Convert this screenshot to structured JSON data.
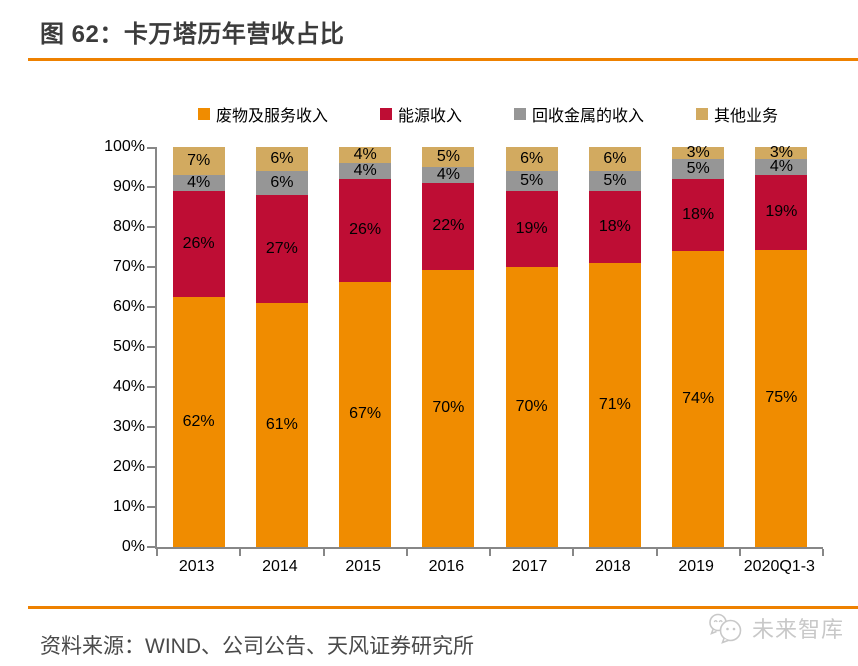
{
  "title": "图 62：卡万塔历年营收占比",
  "footer": {
    "source": "资料来源：WIND、公司公告、天风证券研究所",
    "watermark": "未来智库"
  },
  "colors": {
    "accent_rule": "#EE8100",
    "axis": "#878787",
    "title_text": "#3B3B3B",
    "source_text": "#4A4A4A",
    "watermark_text": "#C8C8C8",
    "label_text": "#000000"
  },
  "chart_data": {
    "type": "bar",
    "variant": "stacked-100-percent-column",
    "title": "卡万塔历年营收占比",
    "categories": [
      "2013",
      "2014",
      "2015",
      "2016",
      "2017",
      "2018",
      "2019",
      "2020Q1-3"
    ],
    "series": [
      {
        "name": "废物及服务收入",
        "color": "#F08C00",
        "values": [
          62,
          61,
          67,
          70,
          70,
          71,
          74,
          75
        ]
      },
      {
        "name": "能源收入",
        "color": "#BE0D34",
        "values": [
          26,
          27,
          26,
          22,
          19,
          18,
          18,
          19
        ]
      },
      {
        "name": "回收金属的收入",
        "color": "#969696",
        "values": [
          4,
          6,
          4,
          4,
          5,
          5,
          5,
          4
        ]
      },
      {
        "name": "其他业务",
        "color": "#D2AA60",
        "values": [
          7,
          6,
          4,
          5,
          6,
          6,
          3,
          3
        ]
      }
    ],
    "value_suffix": "%",
    "y_ticks": [
      "0%",
      "10%",
      "20%",
      "30%",
      "40%",
      "50%",
      "60%",
      "70%",
      "80%",
      "90%",
      "100%"
    ],
    "ylim": [
      0,
      100
    ],
    "grid": false,
    "legend_position": "top"
  }
}
